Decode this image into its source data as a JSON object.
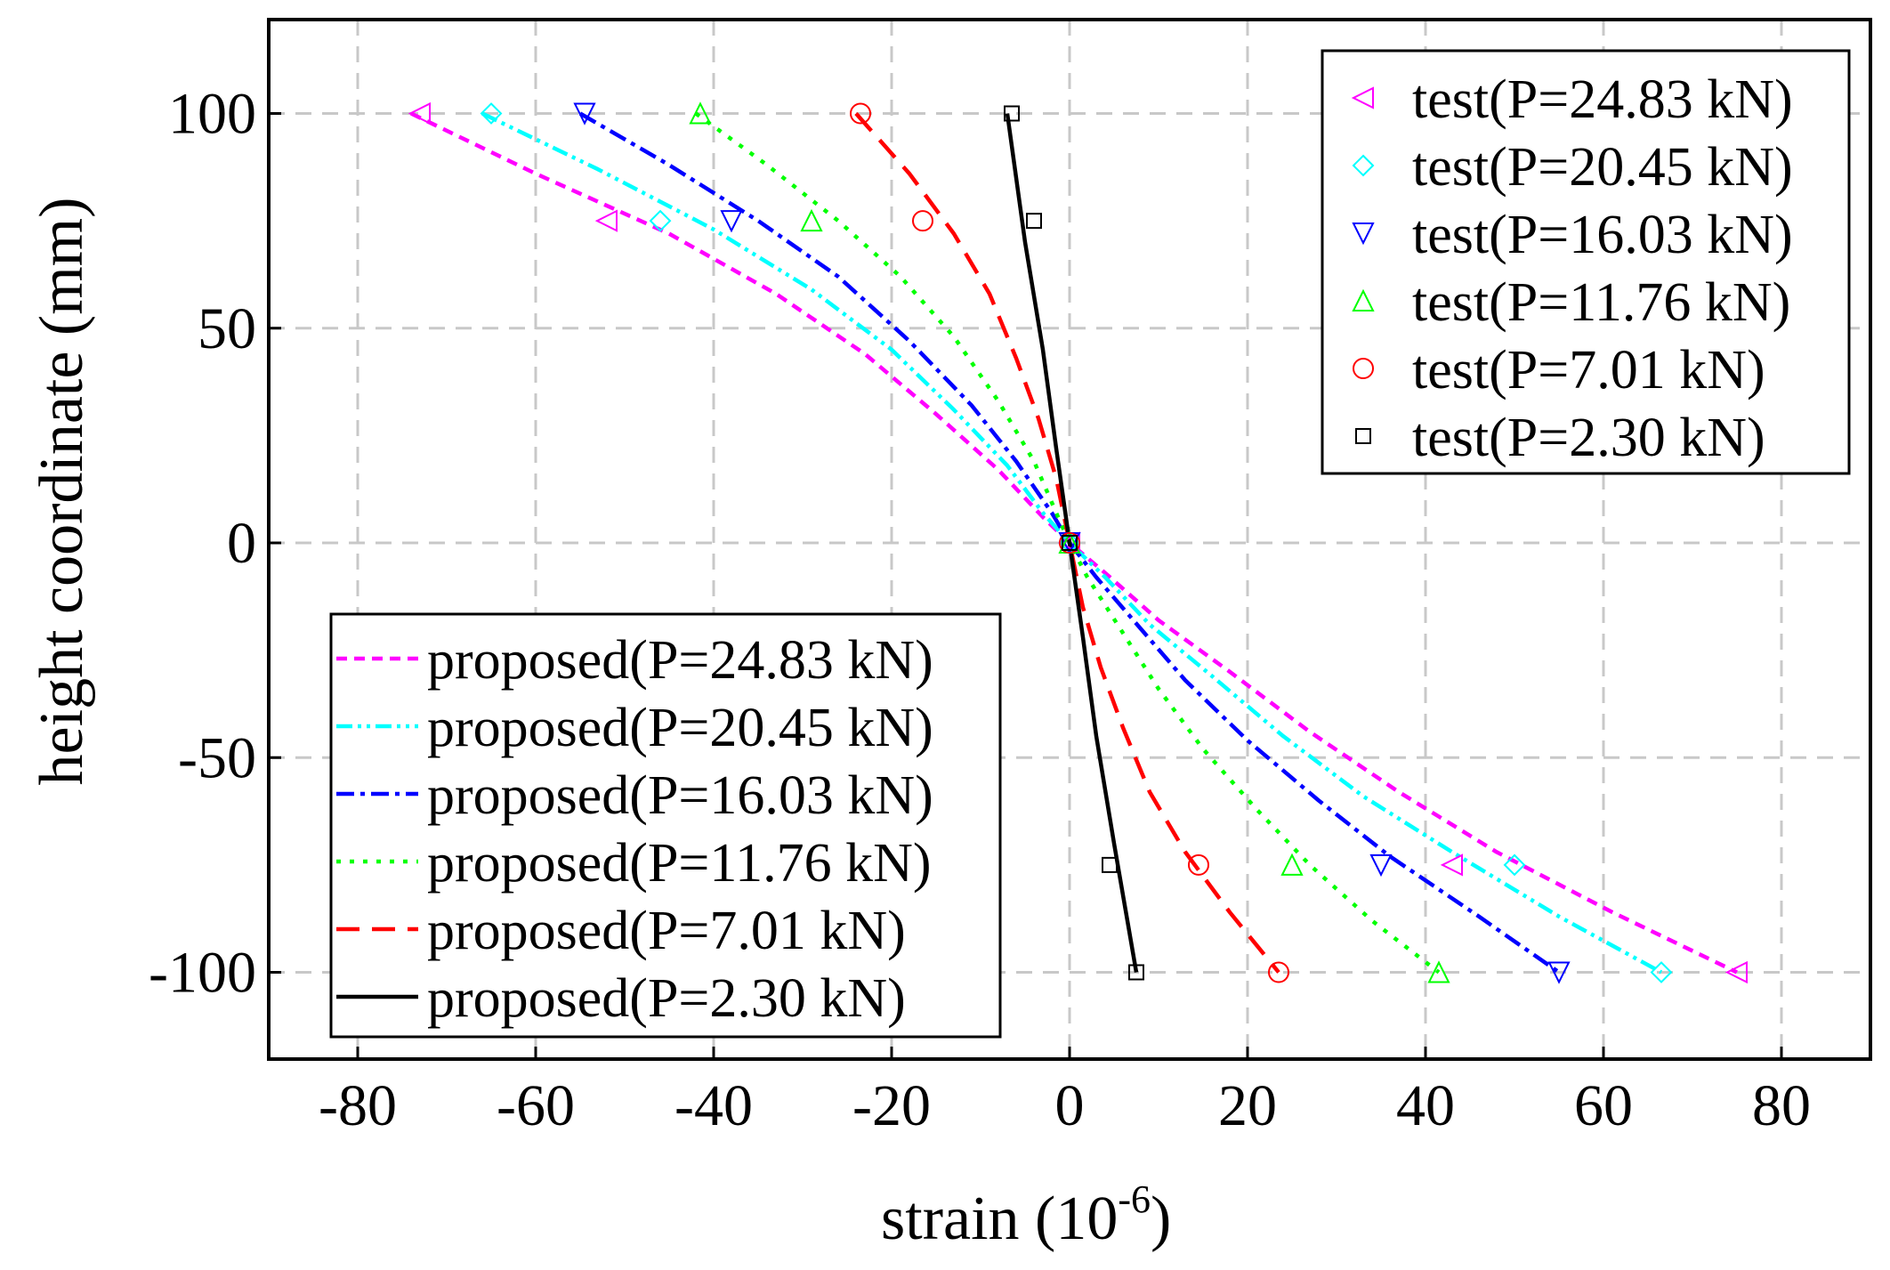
{
  "chart_data": {
    "type": "line",
    "title": "",
    "xlabel": "strain (10",
    "xlabel_sup": "-6",
    "xlabel_close": ")",
    "ylabel": "height coordinate (mm)",
    "xlim": [
      -90,
      90
    ],
    "ylim": [
      -120,
      120
    ],
    "xticks": [
      -80,
      -60,
      -40,
      -20,
      0,
      20,
      40,
      60,
      80
    ],
    "yticks": [
      100,
      50,
      0,
      -50,
      -100
    ],
    "xtick_labels": [
      "-80",
      "-60",
      "-40",
      "-20",
      "0",
      "20",
      "40",
      "60",
      "80"
    ],
    "ytick_labels": [
      "100",
      "50",
      "0",
      "-50",
      "-100"
    ],
    "grid": true,
    "test_legend_position": "top-right",
    "proposed_legend_position": "bottom-left",
    "test_series": [
      {
        "name": "test(P=24.83 kN)",
        "color": "#ff00ff",
        "marker": "triangle-left",
        "points": [
          [
            -73,
            100
          ],
          [
            -52,
            75
          ],
          [
            0,
            0
          ],
          [
            43,
            -75
          ],
          [
            75,
            -100
          ]
        ]
      },
      {
        "name": "test(P=20.45 kN)",
        "color": "#00ffff",
        "marker": "diamond",
        "points": [
          [
            -65,
            100
          ],
          [
            -46,
            75
          ],
          [
            0,
            0
          ],
          [
            50,
            -75
          ],
          [
            66.5,
            -100
          ]
        ]
      },
      {
        "name": "test(P=16.03 kN)",
        "color": "#0000ff",
        "marker": "triangle-down",
        "points": [
          [
            -54.5,
            100
          ],
          [
            -38,
            75
          ],
          [
            0,
            0
          ],
          [
            35,
            -75
          ],
          [
            55,
            -100
          ]
        ]
      },
      {
        "name": "test(P=11.76 kN)",
        "color": "#00ff00",
        "marker": "triangle-up",
        "points": [
          [
            -41.5,
            100
          ],
          [
            -29,
            75
          ],
          [
            0,
            0
          ],
          [
            25,
            -75
          ],
          [
            41.5,
            -100
          ]
        ]
      },
      {
        "name": "test(P=7.01 kN)",
        "color": "#ff0000",
        "marker": "circle",
        "points": [
          [
            -23.5,
            100
          ],
          [
            -16.5,
            75
          ],
          [
            0,
            0
          ],
          [
            14.5,
            -75
          ],
          [
            23.5,
            -100
          ]
        ]
      },
      {
        "name": "test(P=2.30 kN)",
        "color": "#000000",
        "marker": "square",
        "points": [
          [
            -6.5,
            100
          ],
          [
            -4,
            75
          ],
          [
            0,
            0
          ],
          [
            4.5,
            -75
          ],
          [
            7.5,
            -100
          ]
        ]
      }
    ],
    "proposed_series": [
      {
        "name": "proposed(P=24.83 kN)",
        "color": "#ff00ff",
        "dash": "12,8",
        "points": [
          [
            -74,
            100
          ],
          [
            -60,
            86
          ],
          [
            -45,
            72
          ],
          [
            -33,
            58
          ],
          [
            -23,
            44
          ],
          [
            -15,
            30
          ],
          [
            -8,
            17
          ],
          [
            -3,
            6
          ],
          [
            0,
            0
          ],
          [
            4,
            -7
          ],
          [
            10,
            -18
          ],
          [
            18,
            -30
          ],
          [
            27,
            -44
          ],
          [
            37,
            -58
          ],
          [
            48,
            -72
          ],
          [
            61,
            -86
          ],
          [
            75,
            -100
          ]
        ]
      },
      {
        "name": "proposed(P=20.45 kN)",
        "color": "#00ffff",
        "dash": "18,6,4,6,4,6",
        "points": [
          [
            -66,
            100
          ],
          [
            -53,
            87
          ],
          [
            -40,
            73
          ],
          [
            -29,
            59
          ],
          [
            -20,
            45
          ],
          [
            -13,
            31
          ],
          [
            -7,
            18
          ],
          [
            -3,
            7
          ],
          [
            0,
            0
          ],
          [
            4,
            -8
          ],
          [
            9,
            -19
          ],
          [
            16,
            -31
          ],
          [
            24,
            -45
          ],
          [
            33,
            -59
          ],
          [
            43,
            -72
          ],
          [
            55,
            -87
          ],
          [
            66.5,
            -100
          ]
        ]
      },
      {
        "name": "proposed(P=16.03 kN)",
        "color": "#0000ff",
        "dash": "20,7,5,7",
        "points": [
          [
            -55,
            100
          ],
          [
            -45,
            88
          ],
          [
            -35,
            75
          ],
          [
            -26,
            62
          ],
          [
            -18,
            47
          ],
          [
            -11,
            32
          ],
          [
            -6,
            19
          ],
          [
            -2,
            7
          ],
          [
            0,
            0
          ],
          [
            3,
            -8
          ],
          [
            8,
            -20
          ],
          [
            13,
            -32
          ],
          [
            20,
            -46
          ],
          [
            28,
            -60
          ],
          [
            36,
            -73
          ],
          [
            46,
            -87
          ],
          [
            55,
            -100
          ]
        ]
      },
      {
        "name": "proposed(P=11.76 kN)",
        "color": "#00ff00",
        "dash": "5,10",
        "points": [
          [
            -42,
            100
          ],
          [
            -34,
            88
          ],
          [
            -26,
            75
          ],
          [
            -19,
            62
          ],
          [
            -13,
            48
          ],
          [
            -8,
            33
          ],
          [
            -4,
            19
          ],
          [
            -1.5,
            7
          ],
          [
            0,
            0
          ],
          [
            2,
            -8
          ],
          [
            6,
            -21
          ],
          [
            10,
            -34
          ],
          [
            15,
            -48
          ],
          [
            21,
            -62
          ],
          [
            27,
            -75
          ],
          [
            34,
            -88
          ],
          [
            41.5,
            -100
          ]
        ]
      },
      {
        "name": "proposed(P=7.01 kN)",
        "color": "#ff0000",
        "dash": "26,14",
        "points": [
          [
            -24,
            100
          ],
          [
            -18,
            86
          ],
          [
            -13,
            72
          ],
          [
            -9,
            58
          ],
          [
            -6,
            43
          ],
          [
            -3.5,
            29
          ],
          [
            -1.5,
            15
          ],
          [
            0,
            0
          ],
          [
            1.5,
            -15
          ],
          [
            3.5,
            -29
          ],
          [
            6,
            -43
          ],
          [
            9,
            -58
          ],
          [
            13,
            -72
          ],
          [
            18,
            -86
          ],
          [
            23.5,
            -100
          ]
        ]
      },
      {
        "name": "proposed(P=2.30 kN)",
        "color": "#000000",
        "dash": "",
        "points": [
          [
            -7,
            100
          ],
          [
            -5,
            70
          ],
          [
            -3,
            45
          ],
          [
            -1.5,
            22
          ],
          [
            0,
            0
          ],
          [
            1.5,
            -22
          ],
          [
            3,
            -45
          ],
          [
            5,
            -70
          ],
          [
            7.5,
            -100
          ]
        ]
      }
    ]
  }
}
